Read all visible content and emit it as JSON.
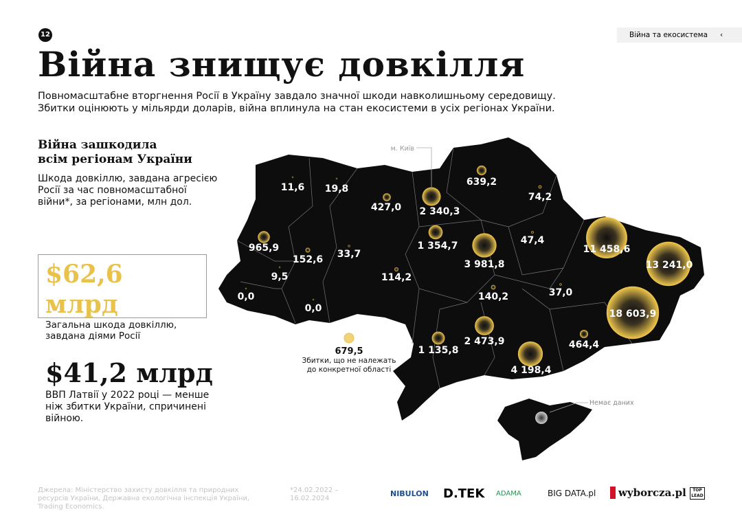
{
  "page_number": "12",
  "nav": "Війна та екосистема",
  "title": "Війна знищує довкілля",
  "subtitle": [
    "Повномасштабне вторгнення Росії в Україну завдало значної шкоди навколишньому середовищу.",
    "Збитки оцінюють у мільярди доларів, війна вплинула на стан екосистеми в усіх регіонах України."
  ],
  "section": {
    "heading": [
      "Війна зашкодила",
      "всім регіонам України"
    ],
    "description": [
      "Шкода довкіллю, завдана агресією",
      "Росії за час повномасштабної",
      "війни*, за регіонами, млн дол."
    ]
  },
  "total": {
    "amount": "$62,6 млрд",
    "caption": [
      "Загальна шкода довкіллю,",
      "завдана діями Росії"
    ]
  },
  "comparison": {
    "amount": "$41,2 млрд",
    "caption": [
      "ВВП Латвії у 2022 році — менше",
      "ніж збитки України, спричинені",
      "війною."
    ]
  },
  "map": {
    "kyiv_label": "м. Київ",
    "no_data_label": "Немає даних",
    "regions": [
      {
        "value": 11.6,
        "label": "11,6"
      },
      {
        "value": 19.8,
        "label": "19,8"
      },
      {
        "value": 427.0,
        "label": "427,0"
      },
      {
        "value": 2340.3,
        "label": "2 340,3"
      },
      {
        "value": 639.2,
        "label": "639,2"
      },
      {
        "value": 74.2,
        "label": "74,2"
      },
      {
        "value": 965.9,
        "label": "965,9"
      },
      {
        "value": 152.6,
        "label": "152,6"
      },
      {
        "value": 33.7,
        "label": "33,7"
      },
      {
        "value": 1354.7,
        "label": "1 354,7"
      },
      {
        "value": 3981.8,
        "label": "3 981,8"
      },
      {
        "value": 47.4,
        "label": "47,4"
      },
      {
        "value": 11458.6,
        "label": "11 458,6"
      },
      {
        "value": 13241.0,
        "label": "13 241,0"
      },
      {
        "value": 9.5,
        "label": "9,5"
      },
      {
        "value": 114.2,
        "label": "114,2"
      },
      {
        "value": 140.2,
        "label": "140,2"
      },
      {
        "value": 37.0,
        "label": "37,0"
      },
      {
        "value": 0.0,
        "label": "0,0"
      },
      {
        "value": 0.0,
        "label": "0,0"
      },
      {
        "value": 18603.9,
        "label": "18 603,9"
      },
      {
        "value": 2473.9,
        "label": "2 473,9"
      },
      {
        "value": 1135.8,
        "label": "1 135,8"
      },
      {
        "value": 464.4,
        "label": "464,4"
      },
      {
        "value": 4198.4,
        "label": "4 198,4"
      }
    ],
    "unassigned": {
      "value": 679.5,
      "label": "679,5",
      "caption": [
        "Збитки, що не належать",
        "до конкретної області"
      ]
    }
  },
  "footer": {
    "sources": [
      "Джерела: Міністерство захисту довкілля та природних",
      "ресурсів України, Державна екологічна інспекція України,",
      "Trading Economics."
    ],
    "period": [
      "*24.02.2022 –",
      "16.02.2024"
    ],
    "logos": [
      "NIBULON",
      "D.TEK",
      "ADAMA",
      "BIG DATA.pl",
      "wyborcza.pl",
      "TOP LEAD"
    ]
  }
}
